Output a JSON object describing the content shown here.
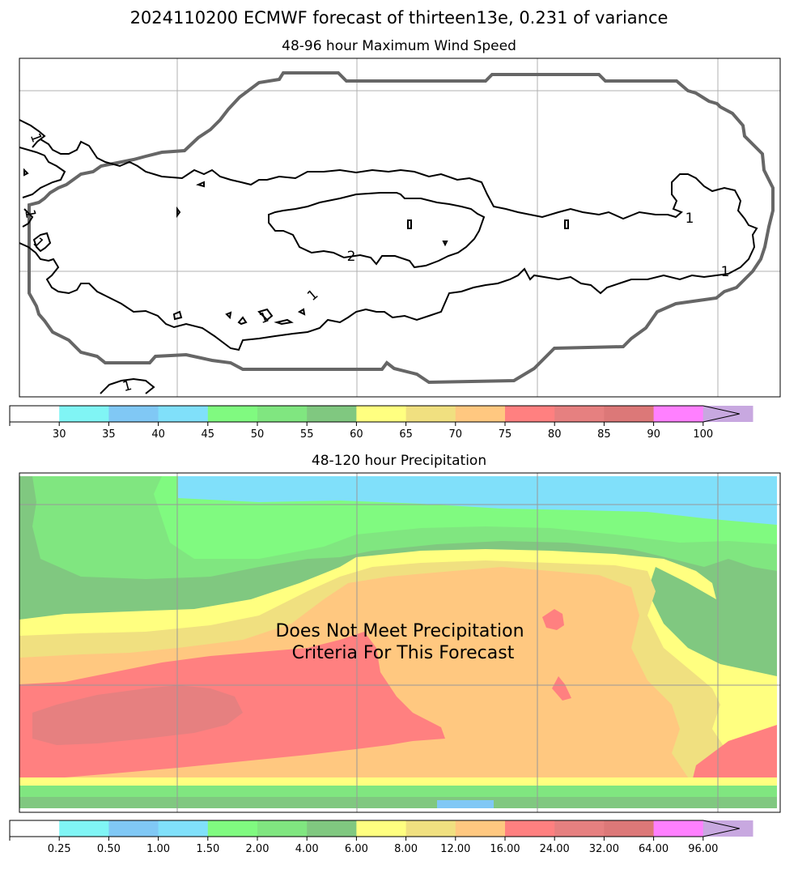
{
  "suptitle": "2024110200 ECMWF forecast of thirteen13e, 0.231 of variance",
  "chart_data": [
    {
      "type": "contour",
      "title": "48-96 hour Maximum Wind Speed",
      "contour_labels": [
        "1",
        "1",
        "1",
        "1",
        "1",
        "1",
        "1",
        "2",
        "1"
      ],
      "colorbar": {
        "ticks": [
          "30",
          "35",
          "40",
          "45",
          "50",
          "55",
          "60",
          "65",
          "70",
          "75",
          "80",
          "85",
          "90",
          "100"
        ],
        "colors": [
          "#ffffff",
          "#80f5f5",
          "#80c8f5",
          "#80e0fa",
          "#80fa80",
          "#80e680",
          "#80c880",
          "#ffff80",
          "#f0e080",
          "#ffc880",
          "#ff8080",
          "#e68080",
          "#dc7878",
          "#ff80ff",
          "#c8a8e0"
        ],
        "extend": "max"
      }
    },
    {
      "type": "heatmap",
      "title": "48-120 hour Precipitation",
      "annotation": "Does Not Meet Precipitation Criteria For This Forecast",
      "annotation_lines": [
        "Does Not Meet Precipitation",
        "Criteria For This Forecast"
      ],
      "colorbar": {
        "ticks": [
          "0.25",
          "0.50",
          "1.00",
          "1.50",
          "2.00",
          "4.00",
          "6.00",
          "8.00",
          "12.00",
          "16.00",
          "24.00",
          "32.00",
          "64.00",
          "96.00"
        ],
        "colors": [
          "#ffffff",
          "#80f5f5",
          "#80c8f5",
          "#80e0fa",
          "#80fa80",
          "#80e680",
          "#80c880",
          "#ffff80",
          "#f0e080",
          "#ffc880",
          "#ff8080",
          "#e68080",
          "#dc7878",
          "#ff80ff",
          "#c8a8e0"
        ],
        "extend": "max"
      }
    }
  ]
}
